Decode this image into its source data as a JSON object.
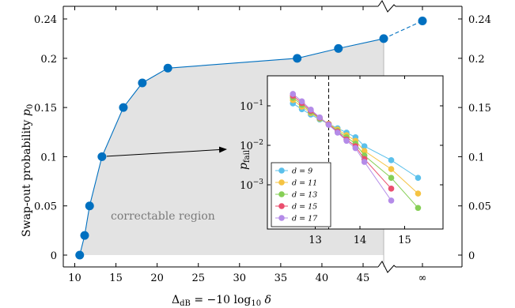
{
  "chart_data": [
    {
      "type": "line",
      "xlabel": "Δ_dB = −10 log_10 δ",
      "ylabel": "Swap-out probability p_0",
      "x_ticks": [
        "10",
        "15",
        "20",
        "25",
        "30",
        "35",
        "40",
        "45",
        "∞"
      ],
      "y_ticks": [
        "0",
        "0.05",
        "0.1",
        "0.15",
        "0.2",
        "0.24"
      ],
      "ylim": [
        0,
        0.24
      ],
      "x_axis_break": true,
      "shaded_region_label": "correctable region",
      "series": [
        {
          "color": "#0070c0",
          "x": [
            "10.6",
            "11.2",
            "11.8",
            "13.3",
            "15.9",
            "18.2",
            "21.3",
            "37.0",
            "42.0",
            "47.5",
            "∞"
          ],
          "y": [
            0.0,
            0.02,
            0.05,
            0.1,
            0.15,
            0.175,
            0.19,
            0.2,
            0.21,
            0.22,
            0.238
          ]
        }
      ],
      "dashed_segment": "from x=47.5 to ∞",
      "arrow_annotation": "point (13.3, 0.1) → inset"
    },
    {
      "type": "line",
      "ylabel": "p_fail",
      "yscale": "log",
      "x_ticks": [
        "13",
        "14",
        "15"
      ],
      "y_ticks": [
        "10^-1",
        "10^-2",
        "10^-3"
      ],
      "xlim": [
        12.3,
        15.5
      ],
      "ylim": [
        0.0002,
        0.35
      ],
      "threshold_line_x": 13.3,
      "legend_position": "bottom-left",
      "series": [
        {
          "name": "d = 9",
          "color": "#5bc0eb",
          "x": [
            12.5,
            12.7,
            12.9,
            13.1,
            13.3,
            13.5,
            13.7,
            13.9,
            14.1,
            14.7,
            15.3
          ],
          "y": [
            0.115,
            0.082,
            0.06,
            0.045,
            0.035,
            0.027,
            0.021,
            0.016,
            0.0095,
            0.0042,
            0.0015
          ]
        },
        {
          "name": "d = 11",
          "color": "#f5c342",
          "x": [
            12.5,
            12.7,
            12.9,
            13.1,
            13.3,
            13.5,
            13.7,
            13.9,
            14.1,
            14.7,
            15.3
          ],
          "y": [
            0.14,
            0.095,
            0.066,
            0.047,
            0.035,
            0.025,
            0.018,
            0.013,
            0.0072,
            0.0025,
            0.0006
          ]
        },
        {
          "name": "d = 13",
          "color": "#86cf56",
          "x": [
            12.5,
            12.7,
            12.9,
            13.1,
            13.3,
            13.5,
            13.7,
            13.9,
            14.1,
            14.7,
            15.3
          ],
          "y": [
            0.16,
            0.107,
            0.07,
            0.048,
            0.034,
            0.023,
            0.016,
            0.011,
            0.0055,
            0.0015,
            0.00026
          ]
        },
        {
          "name": "d = 15",
          "color": "#ea4e6e",
          "x": [
            12.5,
            12.7,
            12.9,
            13.1,
            13.3,
            13.5,
            13.7,
            13.9,
            14.1,
            14.7
          ],
          "y": [
            0.18,
            0.118,
            0.075,
            0.05,
            0.034,
            0.022,
            0.014,
            0.0095,
            0.0045,
            0.0008
          ]
        },
        {
          "name": "d = 17",
          "color": "#b48be8",
          "x": [
            12.5,
            12.7,
            12.9,
            13.1,
            13.3,
            13.5,
            13.7,
            13.9,
            14.1,
            14.7
          ],
          "y": [
            0.2,
            0.13,
            0.08,
            0.051,
            0.033,
            0.021,
            0.013,
            0.0085,
            0.0038,
            0.0004
          ]
        }
      ]
    }
  ]
}
